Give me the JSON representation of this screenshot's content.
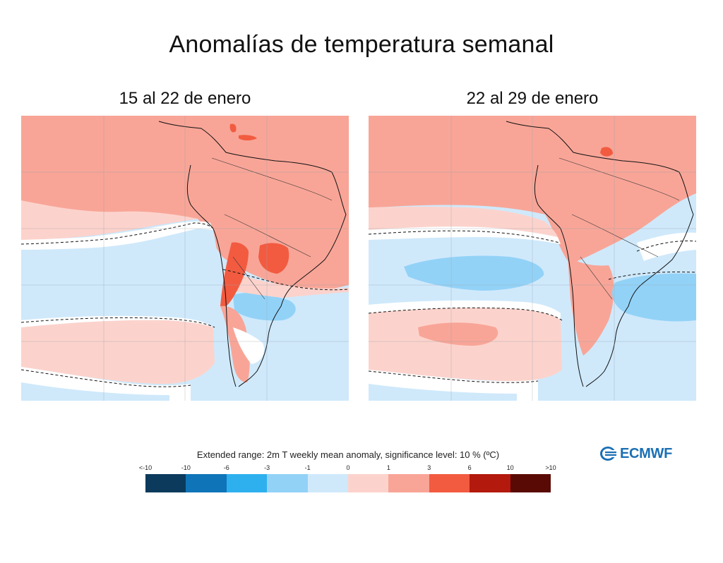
{
  "title": "Anomalías de temperatura semanal",
  "panels": [
    {
      "title": "15 al 22 de enero"
    },
    {
      "title": "22 al 29 de enero"
    }
  ],
  "colorbar": {
    "caption": "Extended range: 2m T weekly mean anomaly, significance level: 10 % (ºC)",
    "ticks": [
      "<-10",
      "-10",
      "-6",
      "-3",
      "-1",
      "0",
      "1",
      "3",
      "6",
      "10",
      ">10"
    ],
    "colors": [
      "#0b3a5c",
      "#0f74b8",
      "#2eb0ef",
      "#93d2f7",
      "#cfe9fb",
      "#fcd3cc",
      "#f8a597",
      "#f25b40",
      "#b3190c",
      "#5a0a04"
    ]
  },
  "logo": {
    "text": "ECMWF",
    "color": "#1a6fb4"
  },
  "palette": {
    "warm_1_3": "#f8a597",
    "warm_0_1": "#fcd3cc",
    "cool_0_1": "#cfe9fb",
    "cool_1_3": "#93d2f7",
    "warm_3_6": "#f25b40",
    "white": "#ffffff"
  }
}
